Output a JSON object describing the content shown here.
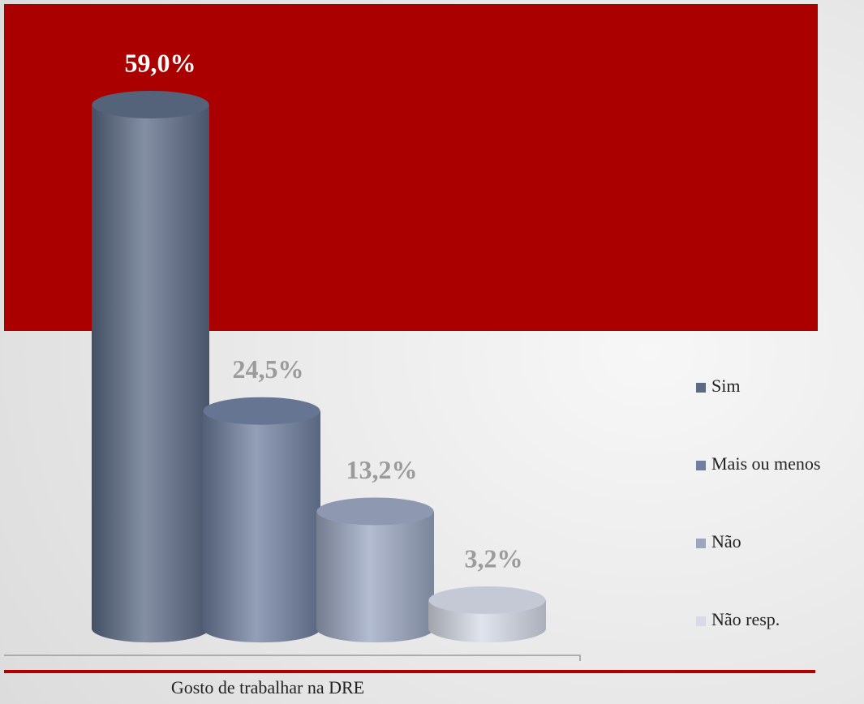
{
  "chart_data": {
    "type": "bar",
    "categories": [
      "Gosto de trabalhar na DRE"
    ],
    "series": [
      {
        "name": "Sim",
        "color": "#5b6a85",
        "values": [
          59.0
        ],
        "value_labels": [
          "59,0%"
        ]
      },
      {
        "name": "Mais ou menos",
        "color": "#6f7f9f",
        "values": [
          24.5
        ],
        "value_labels": [
          "24,5%"
        ]
      },
      {
        "name": "Não",
        "color": "#9aa6c0",
        "values": [
          13.2
        ],
        "value_labels": [
          "13,2%"
        ]
      },
      {
        "name": "Não resp.",
        "color": "#d6dbe7",
        "values": [
          3.2
        ],
        "value_labels": [
          "3,2%"
        ]
      }
    ],
    "legend": "right"
  }
}
